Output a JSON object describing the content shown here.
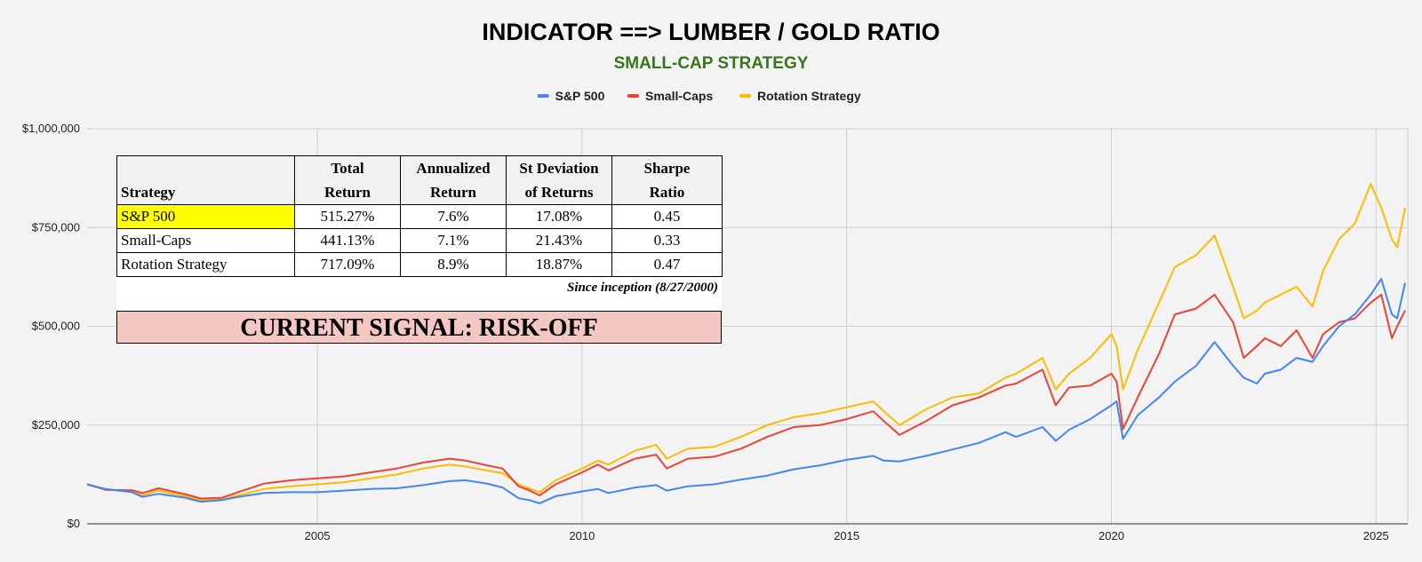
{
  "chart_data": {
    "type": "line",
    "title": "INDICATOR ==> LUMBER / GOLD RATIO",
    "subtitle": "SMALL-CAP STRATEGY",
    "subtitle_color": "#38761d",
    "legend_position": "top",
    "grid": true,
    "xlim": [
      2000.65,
      2025.6
    ],
    "ylim": [
      0,
      1000000
    ],
    "x_ticks": [
      2005,
      2010,
      2015,
      2020,
      2025
    ],
    "x_tick_labels": [
      "2005",
      "2010",
      "2015",
      "2020",
      "2025"
    ],
    "y_ticks": [
      0,
      250000,
      500000,
      750000,
      1000000
    ],
    "y_tick_labels": [
      "$0",
      "$250,000",
      "$500,000",
      "$750,000",
      "$1,000,000"
    ],
    "series": [
      {
        "name": "S&P 500",
        "color": "#4285f4",
        "points": [
          [
            2000.65,
            100000
          ],
          [
            2001.0,
            88000
          ],
          [
            2001.5,
            80000
          ],
          [
            2001.7,
            68000
          ],
          [
            2002.0,
            76000
          ],
          [
            2002.5,
            66000
          ],
          [
            2002.8,
            56000
          ],
          [
            2003.2,
            60000
          ],
          [
            2003.5,
            68000
          ],
          [
            2004.0,
            78000
          ],
          [
            2004.5,
            80000
          ],
          [
            2005.0,
            80000
          ],
          [
            2005.5,
            84000
          ],
          [
            2006.0,
            88000
          ],
          [
            2006.5,
            90000
          ],
          [
            2007.0,
            98000
          ],
          [
            2007.5,
            108000
          ],
          [
            2007.8,
            110000
          ],
          [
            2008.2,
            102000
          ],
          [
            2008.5,
            92000
          ],
          [
            2008.8,
            65000
          ],
          [
            2009.0,
            60000
          ],
          [
            2009.2,
            52000
          ],
          [
            2009.5,
            70000
          ],
          [
            2010.0,
            82000
          ],
          [
            2010.3,
            88000
          ],
          [
            2010.5,
            78000
          ],
          [
            2011.0,
            92000
          ],
          [
            2011.4,
            98000
          ],
          [
            2011.6,
            84000
          ],
          [
            2012.0,
            95000
          ],
          [
            2012.5,
            100000
          ],
          [
            2013.0,
            112000
          ],
          [
            2013.5,
            122000
          ],
          [
            2014.0,
            138000
          ],
          [
            2014.5,
            148000
          ],
          [
            2015.0,
            162000
          ],
          [
            2015.5,
            172000
          ],
          [
            2015.7,
            160000
          ],
          [
            2016.0,
            158000
          ],
          [
            2016.5,
            172000
          ],
          [
            2017.0,
            188000
          ],
          [
            2017.5,
            205000
          ],
          [
            2018.0,
            232000
          ],
          [
            2018.2,
            220000
          ],
          [
            2018.7,
            245000
          ],
          [
            2018.95,
            210000
          ],
          [
            2019.2,
            238000
          ],
          [
            2019.6,
            265000
          ],
          [
            2020.0,
            300000
          ],
          [
            2020.1,
            310000
          ],
          [
            2020.22,
            215000
          ],
          [
            2020.5,
            275000
          ],
          [
            2020.9,
            320000
          ],
          [
            2021.2,
            360000
          ],
          [
            2021.6,
            400000
          ],
          [
            2021.95,
            460000
          ],
          [
            2022.3,
            400000
          ],
          [
            2022.5,
            370000
          ],
          [
            2022.75,
            355000
          ],
          [
            2022.9,
            380000
          ],
          [
            2023.2,
            390000
          ],
          [
            2023.5,
            420000
          ],
          [
            2023.8,
            410000
          ],
          [
            2024.0,
            450000
          ],
          [
            2024.3,
            500000
          ],
          [
            2024.6,
            530000
          ],
          [
            2024.9,
            580000
          ],
          [
            2025.1,
            620000
          ],
          [
            2025.3,
            530000
          ],
          [
            2025.4,
            520000
          ],
          [
            2025.55,
            610000
          ]
        ]
      },
      {
        "name": "Small-Caps",
        "color": "#ea4335",
        "points": [
          [
            2000.65,
            100000
          ],
          [
            2001.0,
            86000
          ],
          [
            2001.5,
            85000
          ],
          [
            2001.7,
            78000
          ],
          [
            2002.0,
            90000
          ],
          [
            2002.5,
            75000
          ],
          [
            2002.8,
            64000
          ],
          [
            2003.2,
            66000
          ],
          [
            2003.5,
            80000
          ],
          [
            2004.0,
            102000
          ],
          [
            2004.5,
            110000
          ],
          [
            2005.0,
            115000
          ],
          [
            2005.5,
            120000
          ],
          [
            2006.0,
            130000
          ],
          [
            2006.5,
            140000
          ],
          [
            2007.0,
            155000
          ],
          [
            2007.5,
            165000
          ],
          [
            2007.8,
            160000
          ],
          [
            2008.2,
            148000
          ],
          [
            2008.5,
            140000
          ],
          [
            2008.8,
            95000
          ],
          [
            2009.0,
            85000
          ],
          [
            2009.2,
            72000
          ],
          [
            2009.5,
            100000
          ],
          [
            2010.0,
            130000
          ],
          [
            2010.3,
            150000
          ],
          [
            2010.5,
            135000
          ],
          [
            2011.0,
            165000
          ],
          [
            2011.4,
            175000
          ],
          [
            2011.6,
            140000
          ],
          [
            2012.0,
            165000
          ],
          [
            2012.5,
            170000
          ],
          [
            2013.0,
            190000
          ],
          [
            2013.5,
            220000
          ],
          [
            2014.0,
            245000
          ],
          [
            2014.5,
            250000
          ],
          [
            2015.0,
            265000
          ],
          [
            2015.5,
            285000
          ],
          [
            2015.7,
            260000
          ],
          [
            2016.0,
            225000
          ],
          [
            2016.5,
            260000
          ],
          [
            2017.0,
            300000
          ],
          [
            2017.5,
            320000
          ],
          [
            2018.0,
            350000
          ],
          [
            2018.2,
            355000
          ],
          [
            2018.7,
            390000
          ],
          [
            2018.95,
            300000
          ],
          [
            2019.2,
            345000
          ],
          [
            2019.6,
            350000
          ],
          [
            2020.0,
            380000
          ],
          [
            2020.1,
            360000
          ],
          [
            2020.22,
            240000
          ],
          [
            2020.5,
            320000
          ],
          [
            2020.9,
            430000
          ],
          [
            2021.2,
            530000
          ],
          [
            2021.6,
            545000
          ],
          [
            2021.95,
            580000
          ],
          [
            2022.3,
            510000
          ],
          [
            2022.5,
            420000
          ],
          [
            2022.75,
            450000
          ],
          [
            2022.9,
            470000
          ],
          [
            2023.2,
            450000
          ],
          [
            2023.5,
            490000
          ],
          [
            2023.8,
            420000
          ],
          [
            2024.0,
            480000
          ],
          [
            2024.3,
            510000
          ],
          [
            2024.6,
            520000
          ],
          [
            2024.9,
            560000
          ],
          [
            2025.1,
            580000
          ],
          [
            2025.3,
            470000
          ],
          [
            2025.4,
            500000
          ],
          [
            2025.55,
            540000
          ]
        ]
      },
      {
        "name": "Rotation Strategy",
        "color": "#fbbc04",
        "points": [
          [
            2000.65,
            100000
          ],
          [
            2001.0,
            87000
          ],
          [
            2001.5,
            82000
          ],
          [
            2001.7,
            72000
          ],
          [
            2002.0,
            84000
          ],
          [
            2002.5,
            70000
          ],
          [
            2002.8,
            60000
          ],
          [
            2003.2,
            62000
          ],
          [
            2003.5,
            72000
          ],
          [
            2004.0,
            88000
          ],
          [
            2004.5,
            95000
          ],
          [
            2005.0,
            100000
          ],
          [
            2005.5,
            105000
          ],
          [
            2006.0,
            115000
          ],
          [
            2006.5,
            125000
          ],
          [
            2007.0,
            140000
          ],
          [
            2007.5,
            150000
          ],
          [
            2007.8,
            145000
          ],
          [
            2008.2,
            135000
          ],
          [
            2008.5,
            128000
          ],
          [
            2008.8,
            100000
          ],
          [
            2009.0,
            90000
          ],
          [
            2009.2,
            80000
          ],
          [
            2009.5,
            110000
          ],
          [
            2010.0,
            140000
          ],
          [
            2010.3,
            160000
          ],
          [
            2010.5,
            150000
          ],
          [
            2011.0,
            185000
          ],
          [
            2011.4,
            200000
          ],
          [
            2011.6,
            165000
          ],
          [
            2012.0,
            190000
          ],
          [
            2012.5,
            195000
          ],
          [
            2013.0,
            220000
          ],
          [
            2013.5,
            250000
          ],
          [
            2014.0,
            270000
          ],
          [
            2014.5,
            280000
          ],
          [
            2015.0,
            295000
          ],
          [
            2015.5,
            310000
          ],
          [
            2015.7,
            285000
          ],
          [
            2016.0,
            250000
          ],
          [
            2016.5,
            290000
          ],
          [
            2017.0,
            320000
          ],
          [
            2017.5,
            330000
          ],
          [
            2018.0,
            370000
          ],
          [
            2018.2,
            380000
          ],
          [
            2018.7,
            420000
          ],
          [
            2018.95,
            340000
          ],
          [
            2019.2,
            380000
          ],
          [
            2019.6,
            420000
          ],
          [
            2020.0,
            480000
          ],
          [
            2020.1,
            450000
          ],
          [
            2020.22,
            340000
          ],
          [
            2020.5,
            440000
          ],
          [
            2020.9,
            560000
          ],
          [
            2021.2,
            650000
          ],
          [
            2021.6,
            680000
          ],
          [
            2021.95,
            730000
          ],
          [
            2022.3,
            600000
          ],
          [
            2022.5,
            520000
          ],
          [
            2022.75,
            540000
          ],
          [
            2022.9,
            560000
          ],
          [
            2023.2,
            580000
          ],
          [
            2023.5,
            600000
          ],
          [
            2023.8,
            550000
          ],
          [
            2024.0,
            640000
          ],
          [
            2024.3,
            720000
          ],
          [
            2024.6,
            760000
          ],
          [
            2024.9,
            860000
          ],
          [
            2025.1,
            800000
          ],
          [
            2025.3,
            720000
          ],
          [
            2025.4,
            700000
          ],
          [
            2025.55,
            800000
          ]
        ]
      }
    ]
  },
  "stats_table": {
    "headers": [
      {
        "line1": "",
        "line2": "Strategy"
      },
      {
        "line1": "Total",
        "line2": "Return"
      },
      {
        "line1": "Annualized",
        "line2": "Return"
      },
      {
        "line1": "St Deviation",
        "line2": "of Returns"
      },
      {
        "line1": "Sharpe",
        "line2": "Ratio"
      }
    ],
    "rows": [
      {
        "name": "S&P 500",
        "total_return": "515.27%",
        "annualized": "7.6%",
        "st_dev": "17.08%",
        "sharpe": "0.45",
        "highlight_color": "#ffff00"
      },
      {
        "name": "Small-Caps",
        "total_return": "441.13%",
        "annualized": "7.1%",
        "st_dev": "21.43%",
        "sharpe": "0.33"
      },
      {
        "name": "Rotation Strategy",
        "total_return": "717.09%",
        "annualized": "8.9%",
        "st_dev": "18.87%",
        "sharpe": "0.47"
      }
    ],
    "inception_note": "Since inception (8/27/2000)"
  },
  "signal": {
    "text": "CURRENT SIGNAL: RISK-OFF",
    "background_color": "#f4c7c3"
  }
}
